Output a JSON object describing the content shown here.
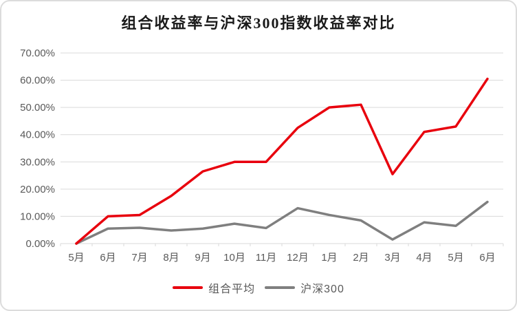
{
  "title": "组合收益率与沪深300指数收益率对比",
  "colors": {
    "background": "#ffffff",
    "border": "#dcdcdc",
    "gridline": "#d9d9d9",
    "axis_text": "#595959",
    "title_text": "#1a1a1a"
  },
  "chart_data": {
    "type": "line",
    "title": "组合收益率与沪深300指数收益率对比",
    "categories": [
      "5月",
      "6月",
      "7月",
      "8月",
      "9月",
      "10月",
      "11月",
      "12月",
      "1月",
      "2月",
      "3月",
      "4月",
      "5月",
      "6月"
    ],
    "series": [
      {
        "name": "组合平均",
        "color": "#e8000d",
        "values": [
          0,
          10,
          10.5,
          17.5,
          26.5,
          30,
          30,
          42.5,
          50,
          51,
          25.5,
          41,
          43,
          60.5
        ]
      },
      {
        "name": "沪深300",
        "color": "#7f7f7f",
        "values": [
          0,
          5.5,
          5.8,
          4.8,
          5.5,
          7.3,
          5.7,
          13,
          10.5,
          8.5,
          1.5,
          7.8,
          6.5,
          15.3
        ]
      }
    ],
    "ylim": [
      0,
      70
    ],
    "ytick_step": 10,
    "ytick_labels": [
      "0.00%",
      "10.00%",
      "20.00%",
      "30.00%",
      "40.00%",
      "50.00%",
      "60.00%",
      "70.00%"
    ],
    "xlabel": "",
    "ylabel": "",
    "grid": "horizontal",
    "legend_position": "bottom"
  }
}
